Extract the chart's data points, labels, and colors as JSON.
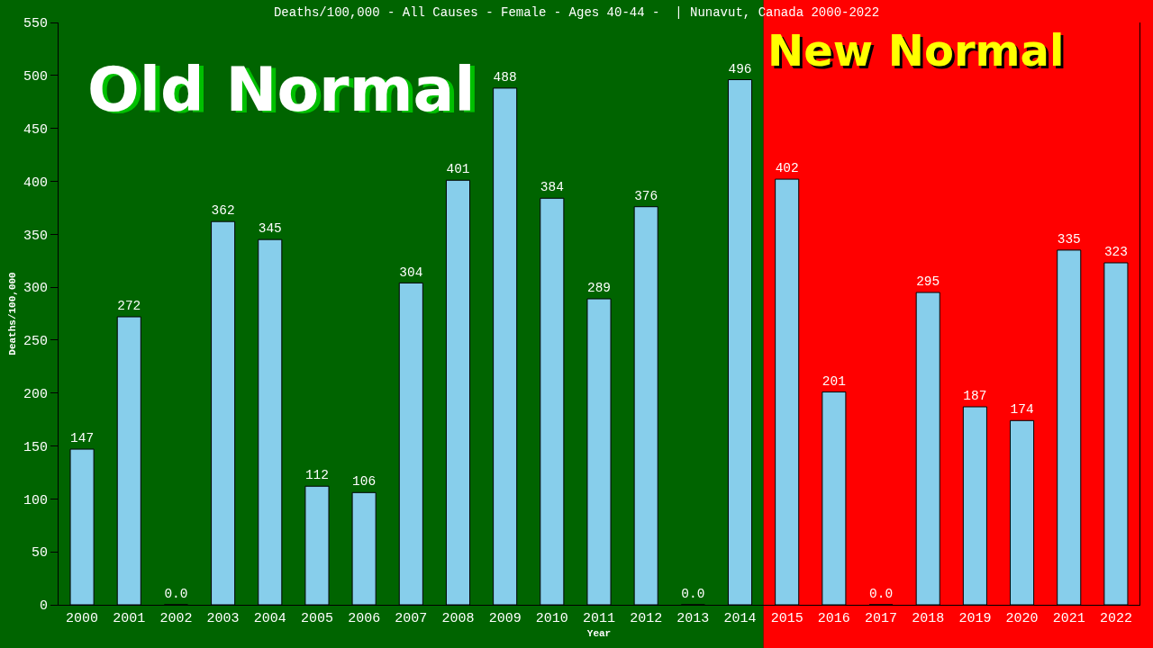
{
  "chart_data": {
    "type": "bar",
    "title": "Deaths/100,000 - All Causes - Female - Ages 40-44 -  | Nunavut, Canada 2000-2022",
    "xlabel": "Year",
    "ylabel": "Deaths/100,000",
    "categories": [
      "2000",
      "2001",
      "2002",
      "2003",
      "2004",
      "2005",
      "2006",
      "2007",
      "2008",
      "2009",
      "2010",
      "2011",
      "2012",
      "2013",
      "2014",
      "2015",
      "2016",
      "2017",
      "2018",
      "2019",
      "2020",
      "2021",
      "2022"
    ],
    "values": [
      147,
      272,
      0,
      362,
      345,
      112,
      106,
      304,
      401,
      488,
      384,
      289,
      376,
      0,
      496,
      402,
      201,
      0,
      295,
      187,
      174,
      335,
      323
    ],
    "value_labels": [
      "147",
      "272",
      "0.0",
      "362",
      "345",
      "112",
      "106",
      "304",
      "401",
      "488",
      "384",
      "289",
      "376",
      "0.0",
      "496",
      "402",
      "201",
      "0.0",
      "295",
      "187",
      "174",
      "335",
      "323"
    ],
    "color": "#87ceeb",
    "ylim": [
      0,
      550
    ],
    "yticks": [
      0,
      50,
      100,
      150,
      200,
      250,
      300,
      350,
      400,
      450,
      500,
      550
    ],
    "bands": [
      {
        "axis": "x",
        "from": "2000",
        "to": "2014",
        "label": "Old Normal",
        "color": "#006400"
      },
      {
        "axis": "x",
        "from": "2015",
        "to": "2022",
        "label": "New Normal",
        "color": "#ff0000"
      }
    ]
  }
}
